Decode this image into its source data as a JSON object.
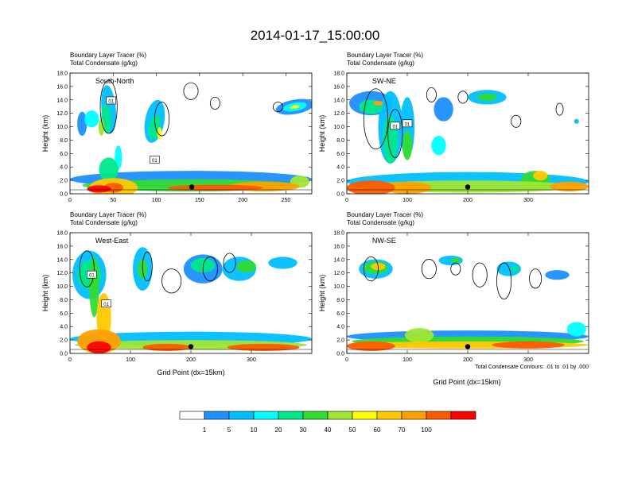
{
  "title": "2014-01-17_15:00:00",
  "panel_subtitle_1": "Boundary Layer Tracer    (%)",
  "panel_subtitle_2": "Total Condensate    (g/kg)",
  "ylabel": "Height (km)",
  "xlabel": "Grid Point (dx=15km)",
  "contour_note": "Total Condensate Contours: .01 to .01 by .000",
  "contour_label": "01",
  "colorbar": {
    "labels": [
      "1",
      "5",
      "10",
      "20",
      "30",
      "40",
      "50",
      "60",
      "70",
      "100"
    ],
    "colors": [
      "#ffffff",
      "#1e90ff",
      "#00bfff",
      "#00ffff",
      "#00e88a",
      "#32dc32",
      "#a0e632",
      "#ffff00",
      "#ffc800",
      "#ffa000",
      "#ff5a00",
      "#ff0000"
    ]
  },
  "chart_data": [
    {
      "type": "heatmap",
      "name": "South-North",
      "x_ticks": [
        "0",
        "50",
        "100",
        "150",
        "200",
        "250"
      ],
      "xlim": [
        0,
        280
      ],
      "y_ticks": [
        "0.0",
        "2.0",
        "4.0",
        "6.0",
        "8.0",
        "10.0",
        "12.0",
        "14.0",
        "16.0",
        "18.0"
      ],
      "ylim": [
        0,
        18
      ],
      "marker_x": 141
    },
    {
      "type": "heatmap",
      "name": "SW-NE",
      "x_ticks": [
        "0",
        "100",
        "200",
        "300"
      ],
      "xlim": [
        0,
        400
      ],
      "y_ticks": [
        "0.0",
        "2.0",
        "4.0",
        "6.0",
        "8.0",
        "10.0",
        "12.0",
        "14.0",
        "16.0",
        "18.0"
      ],
      "ylim": [
        0,
        18
      ],
      "marker_x": 200
    },
    {
      "type": "heatmap",
      "name": "West-East",
      "x_ticks": [
        "0",
        "100",
        "200",
        "300"
      ],
      "xlim": [
        0,
        400
      ],
      "y_ticks": [
        "0.0",
        "2.0",
        "4.0",
        "6.0",
        "8.0",
        "10.0",
        "12.0",
        "14.0",
        "16.0",
        "18.0"
      ],
      "ylim": [
        0,
        18
      ],
      "marker_x": 200
    },
    {
      "type": "heatmap",
      "name": "NW-SE",
      "x_ticks": [
        "0",
        "100",
        "200",
        "300"
      ],
      "xlim": [
        0,
        400
      ],
      "y_ticks": [
        "0.0",
        "2.0",
        "4.0",
        "6.0",
        "8.0",
        "10.0",
        "12.0",
        "14.0",
        "16.0",
        "18.0"
      ],
      "ylim": [
        0,
        18
      ],
      "marker_x": 200
    }
  ]
}
